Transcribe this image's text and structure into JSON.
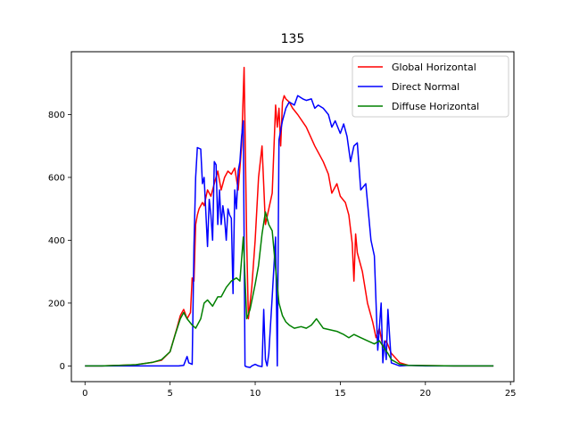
{
  "chart_data": {
    "type": "line",
    "title": "135",
    "xlabel": "",
    "ylabel": "",
    "xlim": [
      -0.8,
      25.2
    ],
    "ylim": [
      -50,
      1000
    ],
    "xticks": [
      0,
      5,
      10,
      15,
      20,
      25
    ],
    "yticks": [
      0,
      200,
      400,
      600,
      800
    ],
    "grid": false,
    "legend": "top-right",
    "series": [
      {
        "name": "Global Horizontal",
        "color": "#ff0000",
        "x": [
          0,
          1,
          2,
          3,
          4,
          4.5,
          5,
          5.4,
          5.6,
          5.8,
          6.0,
          6.2,
          6.3,
          6.4,
          6.5,
          6.6,
          6.7,
          6.9,
          7.0,
          7.2,
          7.4,
          7.6,
          7.8,
          8.0,
          8.2,
          8.4,
          8.6,
          8.8,
          9.0,
          9.2,
          9.35,
          9.5,
          9.6,
          9.8,
          10.0,
          10.2,
          10.4,
          10.6,
          10.8,
          11.0,
          11.2,
          11.3,
          11.4,
          11.5,
          11.6,
          11.7,
          11.8,
          12.0,
          12.2,
          12.5,
          13.0,
          13.5,
          14.0,
          14.3,
          14.5,
          14.8,
          15.0,
          15.3,
          15.5,
          15.7,
          15.8,
          15.9,
          16.0,
          16.3,
          16.6,
          16.9,
          17.1,
          17.3,
          17.5,
          17.7,
          18.0,
          18.5,
          19,
          20,
          22,
          24
        ],
        "y": [
          0,
          0,
          2,
          4,
          12,
          18,
          45,
          120,
          160,
          180,
          150,
          170,
          280,
          270,
          450,
          480,
          500,
          520,
          510,
          560,
          540,
          580,
          620,
          560,
          600,
          620,
          610,
          630,
          560,
          700,
          950,
          400,
          150,
          250,
          400,
          600,
          700,
          450,
          500,
          550,
          830,
          760,
          820,
          700,
          840,
          860,
          850,
          840,
          820,
          800,
          760,
          700,
          650,
          610,
          550,
          580,
          540,
          520,
          480,
          390,
          270,
          420,
          360,
          300,
          200,
          140,
          90,
          120,
          60,
          80,
          40,
          10,
          2,
          1,
          0,
          0
        ]
      },
      {
        "name": "Direct Normal",
        "color": "#0000ff",
        "x": [
          0,
          2,
          4,
          5.5,
          5.8,
          6.0,
          6.1,
          6.3,
          6.4,
          6.5,
          6.6,
          6.8,
          6.9,
          7.0,
          7.2,
          7.3,
          7.4,
          7.5,
          7.6,
          7.7,
          7.8,
          7.9,
          8.0,
          8.1,
          8.2,
          8.3,
          8.4,
          8.5,
          8.6,
          8.7,
          8.8,
          8.9,
          9.0,
          9.1,
          9.2,
          9.3,
          9.4,
          9.5,
          9.7,
          9.8,
          10.0,
          10.2,
          10.4,
          10.5,
          10.6,
          10.7,
          10.8,
          11.0,
          11.2,
          11.3,
          11.4,
          11.6,
          11.8,
          12.0,
          12.3,
          12.5,
          12.8,
          13.0,
          13.3,
          13.5,
          13.7,
          14.0,
          14.3,
          14.5,
          14.7,
          15.0,
          15.2,
          15.4,
          15.6,
          15.8,
          16.0,
          16.2,
          16.5,
          16.8,
          17.0,
          17.2,
          17.4,
          17.5,
          17.6,
          17.7,
          17.8,
          18.0,
          18.5,
          19,
          20,
          22,
          24
        ],
        "y": [
          0,
          0,
          0,
          0,
          2,
          30,
          10,
          5,
          380,
          600,
          695,
          690,
          580,
          600,
          380,
          530,
          480,
          400,
          650,
          640,
          450,
          560,
          450,
          510,
          470,
          400,
          500,
          480,
          470,
          230,
          560,
          500,
          620,
          650,
          730,
          780,
          0,
          -3,
          -5,
          0,
          5,
          0,
          -2,
          180,
          20,
          0,
          40,
          220,
          410,
          0,
          720,
          780,
          820,
          840,
          830,
          860,
          850,
          845,
          850,
          820,
          830,
          820,
          800,
          760,
          780,
          740,
          770,
          730,
          650,
          700,
          710,
          560,
          580,
          400,
          350,
          50,
          200,
          10,
          80,
          20,
          180,
          10,
          0,
          2,
          0,
          0,
          0
        ]
      },
      {
        "name": "Diffuse Horizontal",
        "color": "#008000",
        "x": [
          0,
          1,
          2,
          3,
          3.5,
          4,
          4.5,
          5,
          5.3,
          5.6,
          5.8,
          6.0,
          6.3,
          6.5,
          6.8,
          7.0,
          7.2,
          7.5,
          7.8,
          8.0,
          8.3,
          8.6,
          8.9,
          9.1,
          9.3,
          9.5,
          9.7,
          10.0,
          10.2,
          10.4,
          10.6,
          10.8,
          11.0,
          11.2,
          11.4,
          11.6,
          11.8,
          12.0,
          12.3,
          12.7,
          13.0,
          13.3,
          13.6,
          14.0,
          14.4,
          14.8,
          15.2,
          15.5,
          15.8,
          16.2,
          16.6,
          17.0,
          17.3,
          17.6,
          17.8,
          18.0,
          18.5,
          19,
          20,
          22,
          24
        ],
        "y": [
          0,
          0,
          2,
          4,
          8,
          12,
          20,
          45,
          100,
          150,
          170,
          150,
          130,
          120,
          150,
          200,
          210,
          190,
          220,
          220,
          250,
          270,
          280,
          270,
          410,
          150,
          180,
          260,
          320,
          420,
          490,
          450,
          430,
          310,
          200,
          160,
          140,
          130,
          120,
          125,
          120,
          130,
          150,
          120,
          115,
          110,
          100,
          90,
          100,
          90,
          80,
          70,
          80,
          55,
          40,
          20,
          5,
          2,
          1,
          0,
          0
        ]
      }
    ]
  }
}
